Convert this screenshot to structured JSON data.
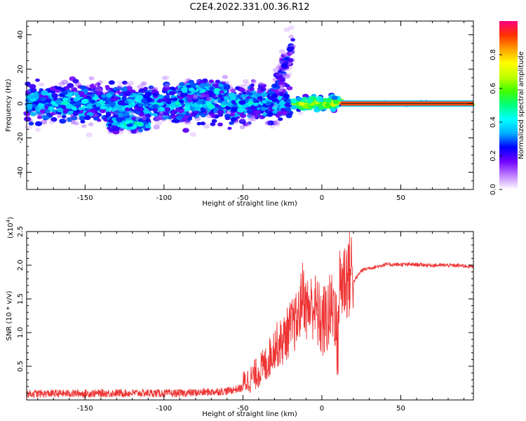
{
  "title": "C2E4.2022.331.00.36.R12",
  "chart_data": [
    {
      "type": "heatmap",
      "xlabel": "Height of straight line (km)",
      "ylabel": "Frequency (Hz)",
      "xlim": [
        -187,
        96
      ],
      "ylim": [
        -50,
        48
      ],
      "x_ticks": [
        -150,
        -100,
        -50,
        0,
        50
      ],
      "y_ticks": [
        -40,
        -20,
        0,
        20,
        40
      ],
      "colorbar": {
        "label": "Normalized spectral amplitude",
        "range": [
          0,
          1
        ],
        "ticks": [
          "0.0",
          "0.2",
          "0.4",
          "0.6",
          "0.8"
        ],
        "colors": [
          "#ffffff",
          "#c080ff",
          "#7000ff",
          "#0000ff",
          "#00b0ff",
          "#00ffff",
          "#00ff80",
          "#40ff00",
          "#c0ff00",
          "#ffff00",
          "#ffa000",
          "#ff3000",
          "#ff0080"
        ]
      },
      "features": [
        {
          "x": [
            -187,
            -20
          ],
          "frequency_center": 0,
          "frequency_spread": 12,
          "amplitude": 0.35
        },
        {
          "x": [
            -135,
            -110
          ],
          "frequency_center": -12,
          "frequency_spread": 4,
          "amplitude": 0.4
        },
        {
          "x": [
            -90,
            -60
          ],
          "frequency_center": 8,
          "frequency_spread": 5,
          "amplitude": 0.35
        },
        {
          "x": [
            -30,
            -18
          ],
          "frequency_center": 25,
          "frequency_spread": 10,
          "amplitude": 0.2
        },
        {
          "x": [
            -18,
            12
          ],
          "frequency_center": 0,
          "frequency_spread": 4,
          "amplitude": 0.7
        },
        {
          "x": [
            12,
            96
          ],
          "frequency_center": 0,
          "frequency_spread": 1,
          "amplitude": 0.95
        }
      ]
    },
    {
      "type": "line",
      "xlabel": "Height of straight line (km)",
      "ylabel": "SNR (10 * v/v)",
      "exponent_label": "(x10",
      "exponent_value": "4",
      "exponent_close": ")",
      "xlim": [
        -187,
        96
      ],
      "ylim": [
        0,
        2.5
      ],
      "x_ticks": [
        -150,
        -100,
        -50,
        0,
        50
      ],
      "y_ticks": [
        "0.5",
        "1.0",
        "1.5",
        "2.0",
        "2.5"
      ],
      "color": "#ee3333",
      "series": [
        {
          "x": [
            -187,
            -170,
            -150,
            -130,
            -110,
            -95,
            -80,
            -70,
            -60,
            -50,
            -45,
            -40,
            -35,
            -30,
            -25,
            -20,
            -15,
            -12,
            -10,
            -5,
            0,
            5,
            8,
            10,
            11,
            12,
            15,
            20,
            25,
            30,
            35,
            40,
            50,
            60,
            70,
            80,
            90,
            96
          ],
          "values": [
            0.05,
            0.06,
            0.06,
            0.07,
            0.07,
            0.06,
            0.08,
            0.1,
            0.12,
            0.2,
            0.25,
            0.35,
            0.45,
            0.7,
            0.75,
            0.95,
            1.05,
            1.5,
            1.2,
            1.25,
            0.95,
            1.1,
            1.25,
            0.5,
            1.45,
            1.55,
            1.6,
            1.75,
            1.92,
            1.96,
            1.98,
            2.01,
            2.01,
            2.01,
            2.0,
            2.0,
            1.99,
            1.98
          ]
        }
      ],
      "annotations": "noise band widens between -50 and 15 km with spikes reaching 2.5"
    }
  ]
}
